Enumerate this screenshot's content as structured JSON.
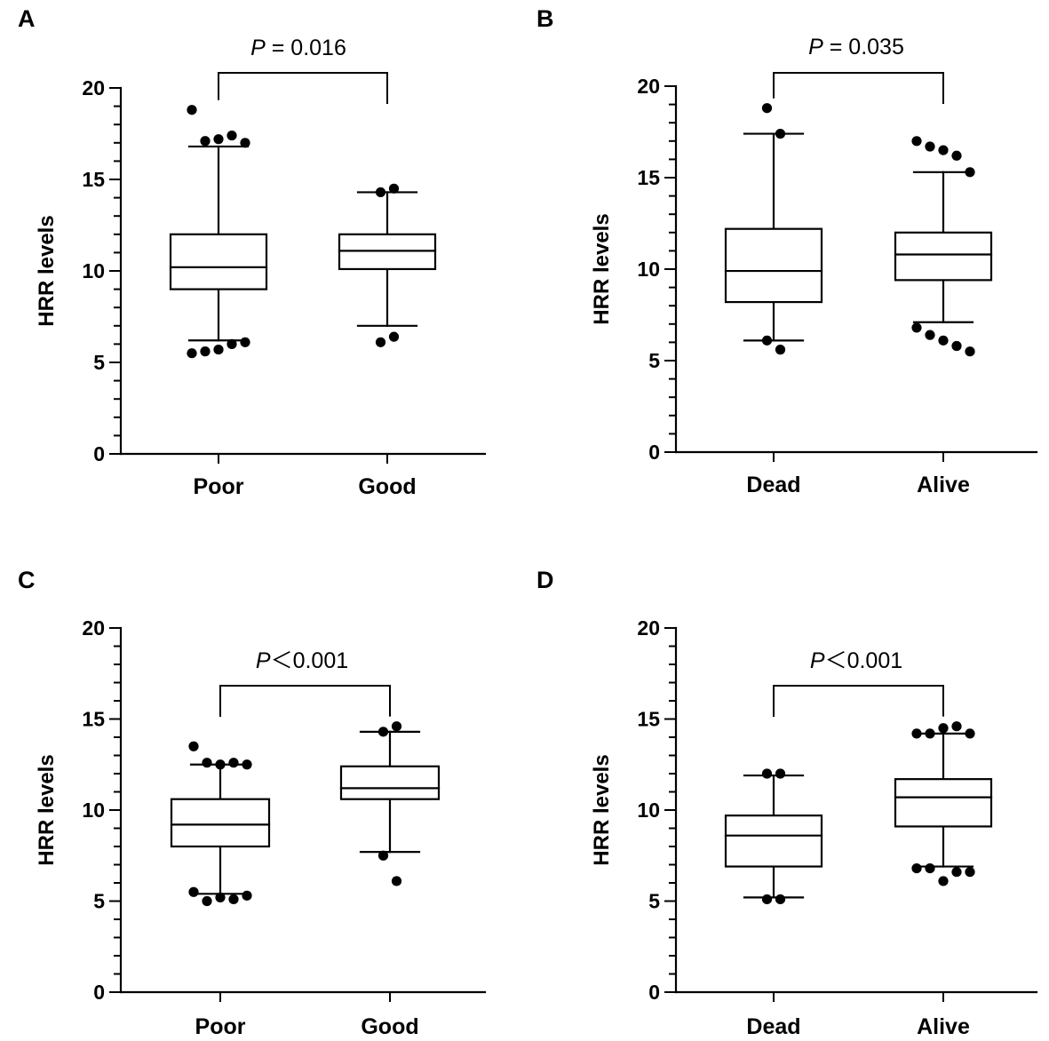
{
  "figure": {
    "layout": "2x2 grid of box plots"
  },
  "chart_data": [
    {
      "panel": "A",
      "type": "box",
      "categories": [
        "Poor",
        "Good"
      ],
      "ylabel": "HRR levels",
      "ylim": [
        0,
        20
      ],
      "yticks": [
        "0",
        "5",
        "10",
        "15",
        "20"
      ],
      "p_label": "P",
      "p_text": " = 0.016",
      "boxes": [
        {
          "name": "Poor",
          "whisker_low": 6.2,
          "q1": 9.0,
          "median": 10.2,
          "q3": 12.0,
          "whisker_high": 16.8,
          "outliers": [
            18.8,
            17.1,
            17.2,
            17.4,
            17.0,
            5.5,
            5.6,
            5.7,
            6.0,
            6.1
          ]
        },
        {
          "name": "Good",
          "whisker_low": 7.0,
          "q1": 10.1,
          "median": 11.1,
          "q3": 12.0,
          "whisker_high": 14.3,
          "outliers": [
            14.3,
            14.5,
            6.1,
            6.4
          ]
        }
      ]
    },
    {
      "panel": "B",
      "type": "box",
      "categories": [
        "Dead",
        "Alive"
      ],
      "ylabel": "HRR levels",
      "ylim": [
        0,
        20
      ],
      "yticks": [
        "0",
        "5",
        "10",
        "15",
        "20"
      ],
      "p_label": "P",
      "p_text": " = 0.035",
      "boxes": [
        {
          "name": "Dead",
          "whisker_low": 6.1,
          "q1": 8.2,
          "median": 9.9,
          "q3": 12.2,
          "whisker_high": 17.4,
          "outliers": [
            18.8,
            17.4,
            6.1,
            5.6
          ]
        },
        {
          "name": "Alive",
          "whisker_low": 7.1,
          "q1": 9.4,
          "median": 10.8,
          "q3": 12.0,
          "whisker_high": 15.3,
          "outliers": [
            17.0,
            16.7,
            16.5,
            16.2,
            15.3,
            6.8,
            6.4,
            6.1,
            5.8,
            5.5
          ]
        }
      ]
    },
    {
      "panel": "C",
      "type": "box",
      "categories": [
        "Poor",
        "Good"
      ],
      "ylabel": "HRR levels",
      "ylim": [
        0,
        20
      ],
      "yticks": [
        "0",
        "5",
        "10",
        "15",
        "20"
      ],
      "p_label": "P",
      "p_text": "＜0.001",
      "boxes": [
        {
          "name": "Poor",
          "whisker_low": 5.4,
          "q1": 8.0,
          "median": 9.2,
          "q3": 10.6,
          "whisker_high": 12.5,
          "outliers": [
            13.5,
            12.6,
            12.5,
            12.6,
            12.5,
            5.5,
            5.0,
            5.2,
            5.1,
            5.3
          ]
        },
        {
          "name": "Good",
          "whisker_low": 7.7,
          "q1": 10.6,
          "median": 11.2,
          "q3": 12.4,
          "whisker_high": 14.3,
          "outliers": [
            14.3,
            14.6,
            7.5,
            6.1
          ]
        }
      ]
    },
    {
      "panel": "D",
      "type": "box",
      "categories": [
        "Dead",
        "Alive"
      ],
      "ylabel": "HRR levels",
      "ylim": [
        0,
        20
      ],
      "yticks": [
        "0",
        "5",
        "10",
        "15",
        "20"
      ],
      "p_label": "P",
      "p_text": "＜0.001",
      "boxes": [
        {
          "name": "Dead",
          "whisker_low": 5.2,
          "q1": 6.9,
          "median": 8.6,
          "q3": 9.7,
          "whisker_high": 11.9,
          "outliers": [
            12.0,
            12.0,
            5.1,
            5.1
          ]
        },
        {
          "name": "Alive",
          "whisker_low": 6.9,
          "q1": 9.1,
          "median": 10.7,
          "q3": 11.7,
          "whisker_high": 14.2,
          "outliers": [
            14.2,
            14.2,
            14.5,
            14.6,
            14.2,
            6.8,
            6.8,
            6.1,
            6.6,
            6.6
          ]
        }
      ]
    }
  ],
  "style": {
    "stroke": "#000000",
    "background": "#ffffff"
  }
}
